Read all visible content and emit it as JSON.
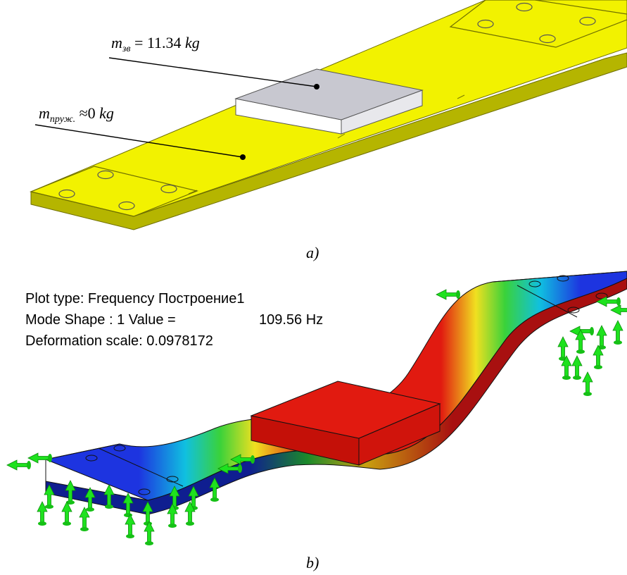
{
  "panel_a": {
    "label": "a)",
    "mass_label": {
      "sym": "m",
      "sub": "зв",
      "rest": " = 11.34 ",
      "unit": "kg"
    },
    "spring_label": {
      "sym": "m",
      "sub": "пруж.",
      "rest": " ≈0 ",
      "unit": "kg"
    }
  },
  "panel_b": {
    "label": "b)",
    "plot_type": "Plot type: Frequency Построение1",
    "mode_shape": "Mode Shape : 1  Value =",
    "frequency": "109.56 Hz",
    "deformation": "Deformation scale: 0.0978172"
  },
  "colors": {
    "spring": "#f2f200",
    "spring_side": "#b5b500",
    "mass_top": "#c8c8d0",
    "mass_side": "#ffffff",
    "mode_low": "#1d34e0",
    "mode_high": "#e11a10",
    "fixture": "#1ee21e"
  }
}
